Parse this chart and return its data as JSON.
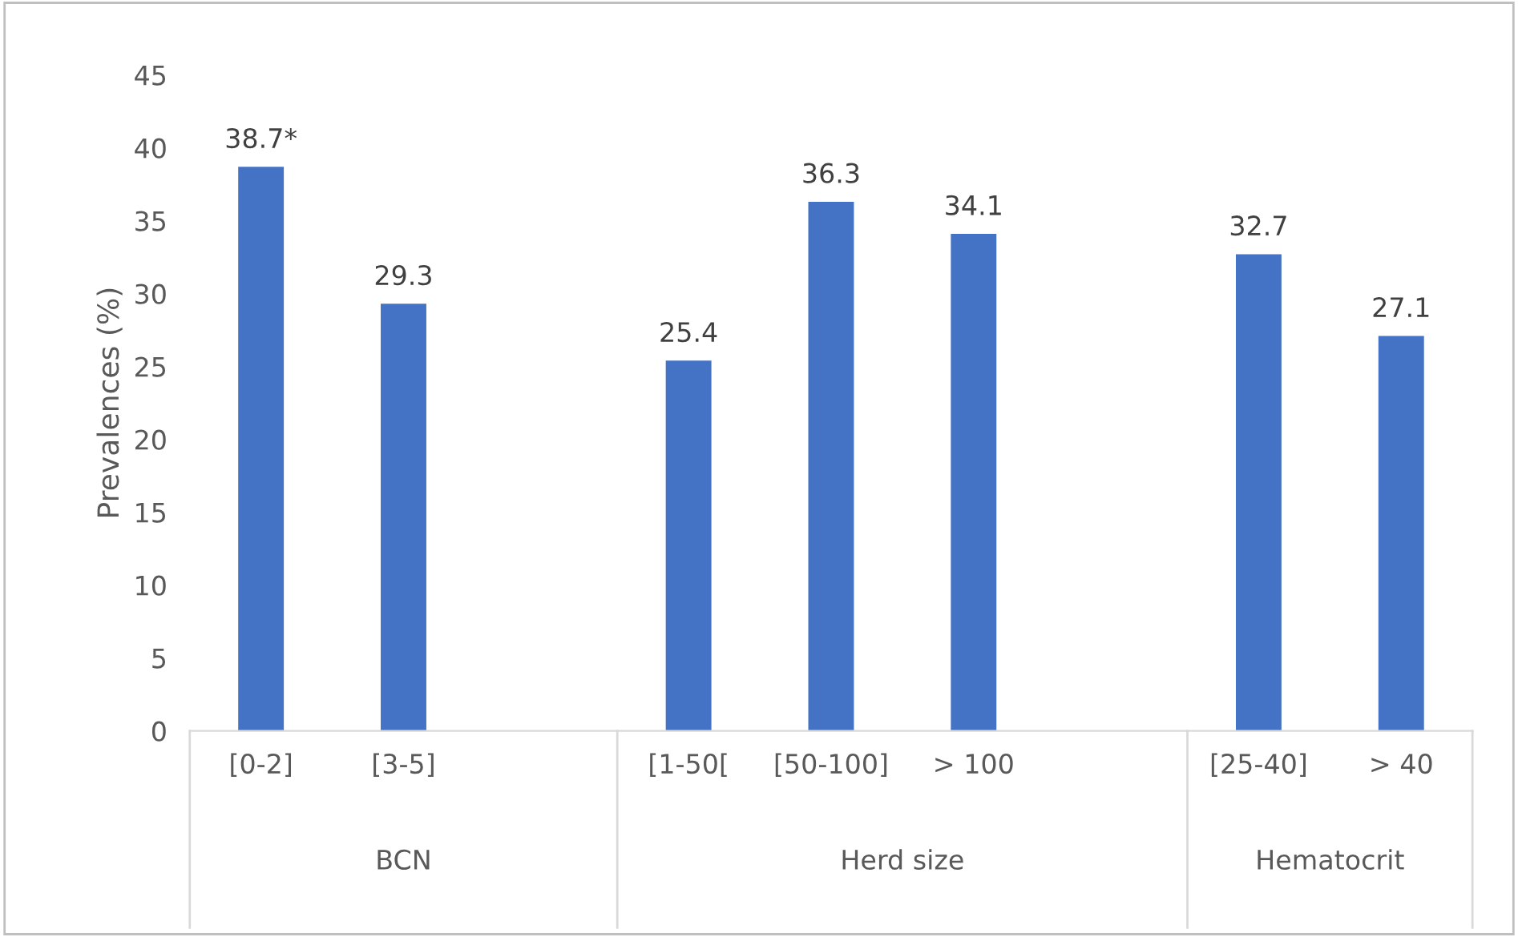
{
  "chart_data": {
    "type": "bar",
    "ylabel": "Prevalences (%)",
    "categories": [
      "[0-2]",
      "[3-5]",
      null,
      "[1-50[",
      "[50-100]",
      "> 100",
      null,
      "[25-40]",
      "> 40"
    ],
    "values": [
      38.7,
      29.3,
      null,
      25.4,
      36.3,
      34.1,
      null,
      32.7,
      27.1
    ],
    "value_labels": [
      "38.7*",
      "29.3",
      null,
      "25.4",
      "36.3",
      "34.1",
      null,
      "32.7",
      "27.1"
    ],
    "color": "#4472c4",
    "ylim": [
      0,
      45
    ],
    "yticks": [
      0,
      5,
      10,
      15,
      20,
      25,
      30,
      35,
      40,
      45
    ],
    "grid": false,
    "annotations": [
      "BCN",
      "Herd size",
      "Hematocrit"
    ]
  }
}
